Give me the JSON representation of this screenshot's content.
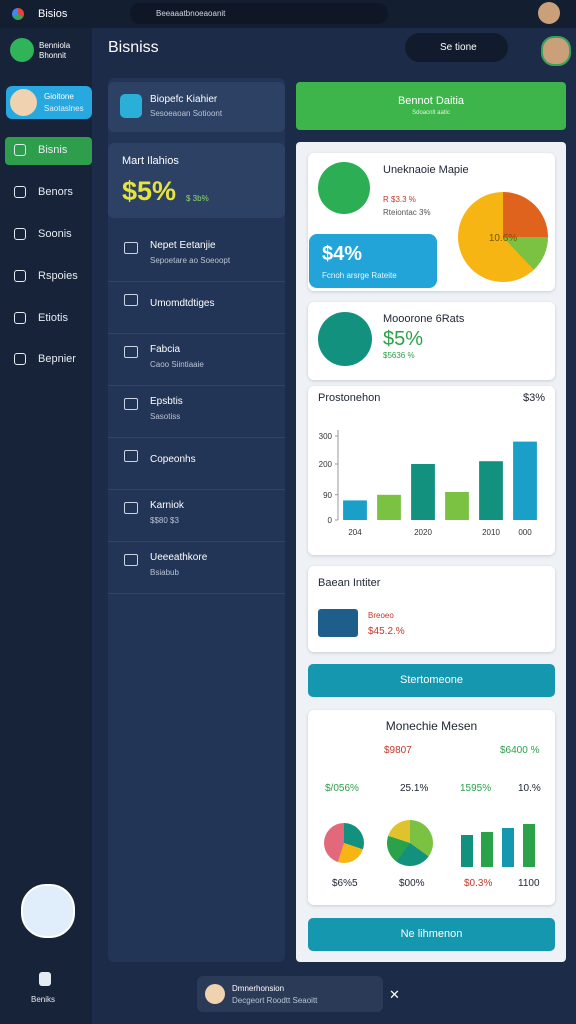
{
  "browser": {
    "tab": "Bisios",
    "url": "Beeaaatbnoeaoanit"
  },
  "sidebar": {
    "brand": [
      "Benniola",
      "Bhonnit"
    ],
    "profile": {
      "name": "Gioitone",
      "role": "Saotaslnes"
    },
    "nav": [
      "Bisnis",
      "Benors",
      "Soonis",
      "Rspoies",
      "Etiotis",
      "Bepnier"
    ],
    "footer": "Beniks"
  },
  "header": {
    "title": "Bisniss",
    "search": "Se tione"
  },
  "left_panel": {
    "card": {
      "title": "Biopefc Kiahier",
      "subtitle": "Sesoeaoan Sotioont"
    },
    "metric": {
      "label": "Mart Ilahios",
      "value": "$5%",
      "delta": "$ 3b%"
    },
    "items": [
      {
        "title": "Nepet Eetanjie",
        "subtitle": "Sepoetare ao Soeoopt"
      },
      {
        "title": "Umomdtdtiges"
      },
      {
        "title": "Fabcia",
        "subtitle": "Caoo Siintiaaie"
      },
      {
        "title": "Epsbtis",
        "subtitle": "Sasotiss"
      },
      {
        "title": "Copeonhs"
      },
      {
        "title": "Karniok",
        "subtitle": "$$80 $3"
      },
      {
        "title": "Ueeeathkore",
        "subtitle": "Bsiabub"
      }
    ]
  },
  "right_panel": {
    "button": {
      "title": "Bennot Daitia",
      "subtitle": "Sdoacnlt aatic"
    },
    "card1": {
      "title": "Uneknaoie Mapie",
      "line1": "R $3.3 %",
      "line2": "Rteiontac 3%",
      "badge": "$4%",
      "badge_sub": "Fcnoh arsrge Rateite",
      "pie_label": "10.6%"
    },
    "card2": {
      "title": "Mooorone 6Rats",
      "value": "$5%",
      "sub": "$5636 %"
    },
    "card4": {
      "title": "Baean Intiter",
      "line1": "Breoeo",
      "line2": "$45.2.%"
    },
    "button2": "Stertomeone",
    "card5": {
      "title": "Monechie Mesen",
      "cells": [
        "$9807",
        "$6400 %",
        "$/056%",
        "25.1%",
        "1595%",
        "10.%",
        "$6%5",
        "$00%",
        "$0.3%",
        "1100"
      ]
    },
    "button3": "Ne lihmenon"
  },
  "toast": {
    "title": "Dmnerhonsion",
    "subtitle": "Decgeort Roodtt Seaoitt"
  },
  "chart_data": {
    "type": "bar",
    "title": "Prostonehon",
    "badge": "$3%",
    "categories": [
      "204",
      null,
      "2020",
      null,
      "2010",
      "000"
    ],
    "values": [
      70,
      90,
      200,
      100,
      210,
      280
    ],
    "colors": [
      "#1a9fc9",
      "#7cc242",
      "#13917f",
      "#7cc242",
      "#13917f",
      "#1a9fc9"
    ],
    "ylim": [
      0,
      300
    ],
    "yticks": [
      0,
      90,
      200,
      300
    ]
  }
}
